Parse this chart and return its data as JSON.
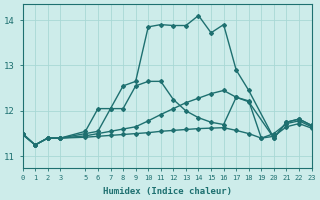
{
  "xlabel": "Humidex (Indice chaleur)",
  "xlim": [
    0,
    23
  ],
  "ylim": [
    10.75,
    14.35
  ],
  "yticks": [
    11,
    12,
    13,
    14
  ],
  "xticks": [
    0,
    1,
    2,
    3,
    5,
    6,
    7,
    8,
    9,
    10,
    11,
    12,
    13,
    14,
    15,
    16,
    17,
    18,
    19,
    20,
    21,
    22,
    23
  ],
  "background_color": "#cdecea",
  "grid_color": "#a8d8d5",
  "line_color": "#1e7070",
  "lines": [
    {
      "x": [
        0,
        1,
        2,
        3,
        5,
        6,
        7,
        8,
        9,
        10,
        11,
        12,
        13,
        14,
        15,
        16,
        17,
        18,
        20,
        21,
        22,
        23
      ],
      "y": [
        11.5,
        11.25,
        11.4,
        11.4,
        11.55,
        12.05,
        12.05,
        12.55,
        12.65,
        13.85,
        13.9,
        13.88,
        13.88,
        14.1,
        13.72,
        13.9,
        12.9,
        12.45,
        11.4,
        11.75,
        11.82,
        11.68
      ],
      "marker": "D",
      "markersize": 2.0,
      "linewidth": 1.0
    },
    {
      "x": [
        0,
        1,
        2,
        3,
        5,
        6,
        7,
        8,
        9,
        10,
        11,
        12,
        13,
        14,
        15,
        16,
        17,
        18,
        20,
        21,
        22,
        23
      ],
      "y": [
        11.5,
        11.25,
        11.4,
        11.4,
        11.5,
        11.55,
        12.05,
        12.05,
        12.55,
        12.65,
        12.65,
        12.25,
        12.0,
        11.85,
        11.75,
        11.7,
        12.3,
        12.2,
        11.4,
        11.75,
        11.82,
        11.68
      ],
      "marker": "D",
      "markersize": 2.0,
      "linewidth": 1.0
    },
    {
      "x": [
        0,
        1,
        2,
        3,
        5,
        6,
        7,
        8,
        9,
        10,
        11,
        12,
        13,
        14,
        15,
        16,
        17,
        18,
        19,
        20,
        21,
        22,
        23
      ],
      "y": [
        11.48,
        11.25,
        11.4,
        11.4,
        11.45,
        11.5,
        11.55,
        11.6,
        11.65,
        11.78,
        11.92,
        12.05,
        12.18,
        12.28,
        12.38,
        12.45,
        12.3,
        12.22,
        11.4,
        11.5,
        11.72,
        11.78,
        11.65
      ],
      "marker": "D",
      "markersize": 2.0,
      "linewidth": 1.0
    },
    {
      "x": [
        0,
        1,
        2,
        3,
        5,
        6,
        7,
        8,
        9,
        10,
        11,
        12,
        13,
        14,
        15,
        16,
        17,
        18,
        19,
        20,
        21,
        22,
        23
      ],
      "y": [
        11.48,
        11.25,
        11.4,
        11.4,
        11.42,
        11.44,
        11.46,
        11.48,
        11.5,
        11.52,
        11.55,
        11.57,
        11.59,
        11.61,
        11.62,
        11.63,
        11.57,
        11.5,
        11.4,
        11.44,
        11.65,
        11.72,
        11.62
      ],
      "marker": "D",
      "markersize": 2.0,
      "linewidth": 1.0
    }
  ]
}
